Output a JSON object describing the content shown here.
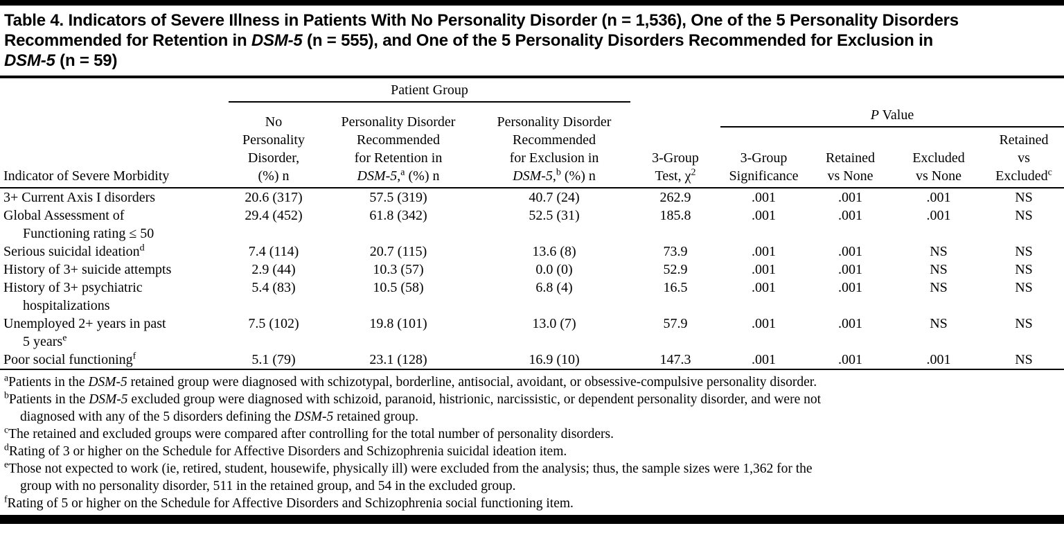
{
  "page": {
    "background": "#ffffff",
    "text_color": "#000000",
    "rule_color": "#000000"
  },
  "table": {
    "title": "Table 4. Indicators of Severe Illness in Patients With No Personality Disorder (n = 1,536), One of the 5 Personality Disorders\nRecommended for Retention in *DSM-5* (n = 555), and One of the 5 Personality Disorders Recommended for Exclusion in\n*DSM-5* (n = 59)",
    "spanners": {
      "patient_group": "Patient Group",
      "p_value": "*P* Value"
    },
    "column_headers": {
      "indicator": "Indicator of Severe Morbidity",
      "no_pd": "No\nPersonality\nDisorder,\n(%) n",
      "pd_retention": "Personality Disorder\nRecommended\nfor Retention in\n*DSM-5*,^a (%) n",
      "pd_exclusion": "Personality Disorder\nRecommended\nfor Exclusion in\n*DSM-5*,^b (%) n",
      "three_group_test": "3-Group\nTest, χ^2",
      "three_group_significance": "3-Group\nSignificance",
      "retained_vs_none": "Retained\nvs None",
      "excluded_vs_none": "Excluded\nvs None",
      "retained_vs_excluded": "Retained\nvs\nExcluded^c"
    },
    "rows": [
      {
        "indicator": "3+ Current Axis I disorders",
        "values": [
          "20.6 (317)",
          "57.5 (319)",
          "40.7 (24)",
          "262.9",
          ".001",
          ".001",
          ".001",
          "NS"
        ]
      },
      {
        "indicator": "Global Assessment of\nFunctioning rating ≤ 50",
        "values": [
          "29.4 (452)",
          "61.8 (342)",
          "52.5 (31)",
          "185.8",
          ".001",
          ".001",
          ".001",
          "NS"
        ]
      },
      {
        "indicator": "Serious suicidal ideation^d",
        "values": [
          "7.4 (114)",
          "20.7 (115)",
          "13.6 (8)",
          "73.9",
          ".001",
          ".001",
          "NS",
          "NS"
        ]
      },
      {
        "indicator": "History of 3+ suicide attempts",
        "values": [
          "2.9 (44)",
          "10.3 (57)",
          "0.0 (0)",
          "52.9",
          ".001",
          ".001",
          "NS",
          "NS"
        ]
      },
      {
        "indicator": "History of 3+ psychiatric\nhospitalizations",
        "values": [
          "5.4 (83)",
          "10.5 (58)",
          "6.8 (4)",
          "16.5",
          ".001",
          ".001",
          "NS",
          "NS"
        ]
      },
      {
        "indicator": "Unemployed 2+ years in past\n5 years^e",
        "values": [
          "7.5 (102)",
          "19.8 (101)",
          "13.0 (7)",
          "57.9",
          ".001",
          ".001",
          "NS",
          "NS"
        ]
      },
      {
        "indicator": "Poor social functioning^f",
        "values": [
          "5.1 (79)",
          "23.1 (128)",
          "16.9 (10)",
          "147.3",
          ".001",
          ".001",
          ".001",
          "NS"
        ]
      }
    ],
    "footnotes": [
      "^aPatients in the *DSM-5* retained group were diagnosed with schizotypal, borderline, antisocial, avoidant, or obsessive-compulsive personality disorder.",
      "^bPatients in the *DSM-5* excluded group were diagnosed with schizoid, paranoid, histrionic, narcissistic, or dependent personality disorder, and were not\ndiagnosed with any of the 5 disorders defining the *DSM-5* retained group.",
      "^cThe retained and excluded groups were compared after controlling for the total number of personality disorders.",
      "^dRating of 3 or higher on the Schedule for Affective Disorders and Schizophrenia suicidal ideation item.",
      "^eThose not expected to work (ie, retired, student, housewife, physically ill) were excluded from the analysis; thus, the sample sizes were 1,362 for the\ngroup with no personality disorder, 511 in the retained group, and 54 in the excluded group.",
      "^fRating of 5 or higher on the Schedule for Affective Disorders and Schizophrenia social functioning item."
    ]
  }
}
